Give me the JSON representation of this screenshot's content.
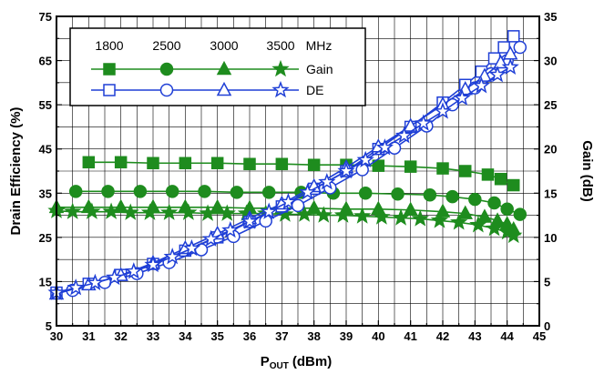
{
  "chart_data": {
    "type": "line",
    "x_axis": {
      "label_main": "P",
      "label_sub": "OUT",
      "label_unit": "(dBm)",
      "range": [
        30,
        45
      ],
      "ticks": [
        "30",
        "31",
        "32",
        "33",
        "34",
        "35",
        "36",
        "37",
        "38",
        "39",
        "40",
        "41",
        "42",
        "43",
        "44",
        "45"
      ]
    },
    "y_left": {
      "label": "Drain Efficiency (%)",
      "range": [
        5,
        75
      ],
      "ticks": [
        "5",
        "15",
        "25",
        "35",
        "45",
        "55",
        "65",
        "75"
      ]
    },
    "y_right": {
      "label": "Gain (dB)",
      "range": [
        0,
        35
      ],
      "ticks": [
        "0",
        "5",
        "10",
        "15",
        "20",
        "25",
        "30",
        "35"
      ]
    },
    "grid": true,
    "legend": {
      "placement": "top-left",
      "frequencies": [
        "1800",
        "2500",
        "3000",
        "3500"
      ],
      "unit": "MHz",
      "gain_label": "Gain",
      "de_label": "DE"
    },
    "colors": {
      "gain": "#1e8c1e",
      "de": "#1f3fd6"
    },
    "series": [
      {
        "group": "gain",
        "marker": "square",
        "axis": "right",
        "x": [
          31,
          32,
          33,
          34,
          35,
          36,
          37,
          38,
          39,
          40,
          41,
          42,
          42.7,
          43.4,
          43.8,
          44.2
        ],
        "y": [
          18.5,
          18.5,
          18.4,
          18.4,
          18.4,
          18.3,
          18.3,
          18.2,
          18.2,
          18.1,
          18,
          17.8,
          17.5,
          17.1,
          16.6,
          15.9
        ]
      },
      {
        "group": "gain",
        "marker": "circle",
        "axis": "right",
        "x": [
          30.6,
          31.6,
          32.6,
          33.6,
          34.6,
          35.6,
          36.6,
          37.6,
          38.6,
          39.6,
          40.6,
          41.6,
          42.3,
          43,
          43.6,
          44,
          44.4
        ],
        "y": [
          15.2,
          15.2,
          15.2,
          15.2,
          15.2,
          15.1,
          15.1,
          15.1,
          15,
          15,
          14.9,
          14.8,
          14.6,
          14.3,
          13.9,
          13.2,
          12.6
        ]
      },
      {
        "group": "gain",
        "marker": "triangle",
        "axis": "right",
        "x": [
          30,
          31,
          32,
          33,
          34,
          35,
          36,
          37,
          38,
          39,
          40,
          41,
          42,
          42.7,
          43.3,
          43.7,
          44,
          44.2
        ],
        "y": [
          13.4,
          13.4,
          13.4,
          13.4,
          13.4,
          13.4,
          13.3,
          13.3,
          13.3,
          13.2,
          13.2,
          13.1,
          12.9,
          12.7,
          12.3,
          11.9,
          11.5,
          10.9
        ]
      },
      {
        "group": "gain",
        "marker": "star",
        "axis": "right",
        "x": [
          30,
          30.5,
          31.1,
          31.7,
          32.3,
          32.9,
          33.5,
          34.1,
          34.7,
          35.3,
          35.9,
          36.5,
          37.1,
          37.7,
          38.3,
          38.9,
          39.5,
          40.1,
          40.7,
          41.3,
          41.9,
          42.5,
          43.1,
          43.6,
          44,
          44.2
        ],
        "y": [
          13,
          12.9,
          12.9,
          12.9,
          12.8,
          12.8,
          12.8,
          12.8,
          12.7,
          12.7,
          12.7,
          12.7,
          12.6,
          12.6,
          12.5,
          12.5,
          12.4,
          12.3,
          12.2,
          12.1,
          11.9,
          11.7,
          11.4,
          11,
          10.6,
          10.2
        ]
      },
      {
        "group": "de",
        "marker": "square",
        "axis": "left",
        "x": [
          30,
          31,
          32,
          33,
          34,
          35,
          36,
          37,
          38,
          39,
          40,
          41,
          42,
          42.7,
          43.2,
          43.6,
          43.9,
          44.2
        ],
        "y": [
          12.5,
          14.5,
          16.5,
          19,
          22,
          25,
          28.5,
          32,
          36,
          40,
          45,
          50,
          55.5,
          59.5,
          62.5,
          65.5,
          68,
          70.5
        ]
      },
      {
        "group": "de",
        "marker": "circle",
        "axis": "left",
        "x": [
          30.5,
          31.5,
          32.5,
          33.5,
          34.5,
          35.5,
          36.5,
          37.5,
          38.5,
          39.5,
          40.5,
          41.5,
          42.3,
          43,
          43.5,
          44,
          44.4
        ],
        "y": [
          13,
          14.8,
          16.8,
          19.3,
          22.2,
          25.2,
          28.7,
          32.2,
          36.2,
          40.3,
          45.2,
          50.2,
          55,
          58.8,
          62,
          65,
          68
        ]
      },
      {
        "group": "de",
        "marker": "triangle",
        "axis": "left",
        "x": [
          30,
          31,
          32,
          33,
          34,
          35,
          36,
          37,
          38,
          39,
          40,
          41,
          42,
          42.7,
          43.3,
          43.8,
          44.1
        ],
        "y": [
          12.2,
          14.3,
          16.4,
          19.2,
          22.5,
          25.8,
          29.3,
          32.6,
          36.5,
          40.8,
          45.5,
          50.2,
          55,
          58.5,
          61.5,
          64.5,
          66.5
        ]
      },
      {
        "group": "de",
        "marker": "star",
        "axis": "left",
        "x": [
          30,
          30.6,
          31.2,
          31.8,
          32.4,
          33,
          33.6,
          34.2,
          34.8,
          35.4,
          36,
          36.6,
          37.2,
          37.8,
          38.4,
          39,
          39.6,
          40.2,
          40.8,
          41.4,
          42,
          42.6,
          43.2,
          43.7,
          44.1
        ],
        "y": [
          12.5,
          13.6,
          14.7,
          15.9,
          17.3,
          18.8,
          20.6,
          22.5,
          24.6,
          26.6,
          28.6,
          30.8,
          33,
          35.2,
          37.5,
          40,
          42.5,
          45.3,
          48,
          50.8,
          53.5,
          56.5,
          59.3,
          61.8,
          63.5
        ]
      }
    ]
  }
}
